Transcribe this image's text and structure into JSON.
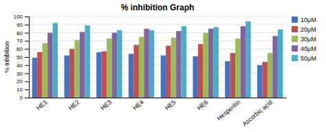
{
  "chart_data": {
    "type": "bar",
    "title": "% inhibition Graph",
    "ylabel": "% inhibition",
    "categories": [
      "HE1",
      "HE2",
      "HE3",
      "HE4",
      "HE5",
      "HE6",
      "Hesperitin",
      "Ascorbic acid"
    ],
    "series": [
      {
        "name": "10μM",
        "color": "#4472C4",
        "values": [
          49,
          52,
          56,
          54,
          52,
          51,
          45,
          40
        ]
      },
      {
        "name": "20μM",
        "color": "#C0504D",
        "values": [
          56,
          60,
          57,
          65,
          64,
          66,
          55,
          44
        ]
      },
      {
        "name": "30μM",
        "color": "#9BBB59",
        "values": [
          67,
          71,
          73,
          75,
          74,
          80,
          73,
          55
        ]
      },
      {
        "name": "40μM",
        "color": "#8064A2",
        "values": [
          80,
          81,
          80,
          85,
          82,
          85,
          88,
          76
        ]
      },
      {
        "name": "50μM",
        "color": "#4BACC6",
        "values": [
          92,
          89,
          83,
          83,
          88,
          87,
          94,
          84
        ]
      }
    ],
    "ylim": [
      0,
      100
    ],
    "yticks": [
      0,
      10,
      20,
      30,
      40,
      50,
      60,
      70,
      80,
      90,
      100
    ],
    "grid": true,
    "legend": "right"
  }
}
